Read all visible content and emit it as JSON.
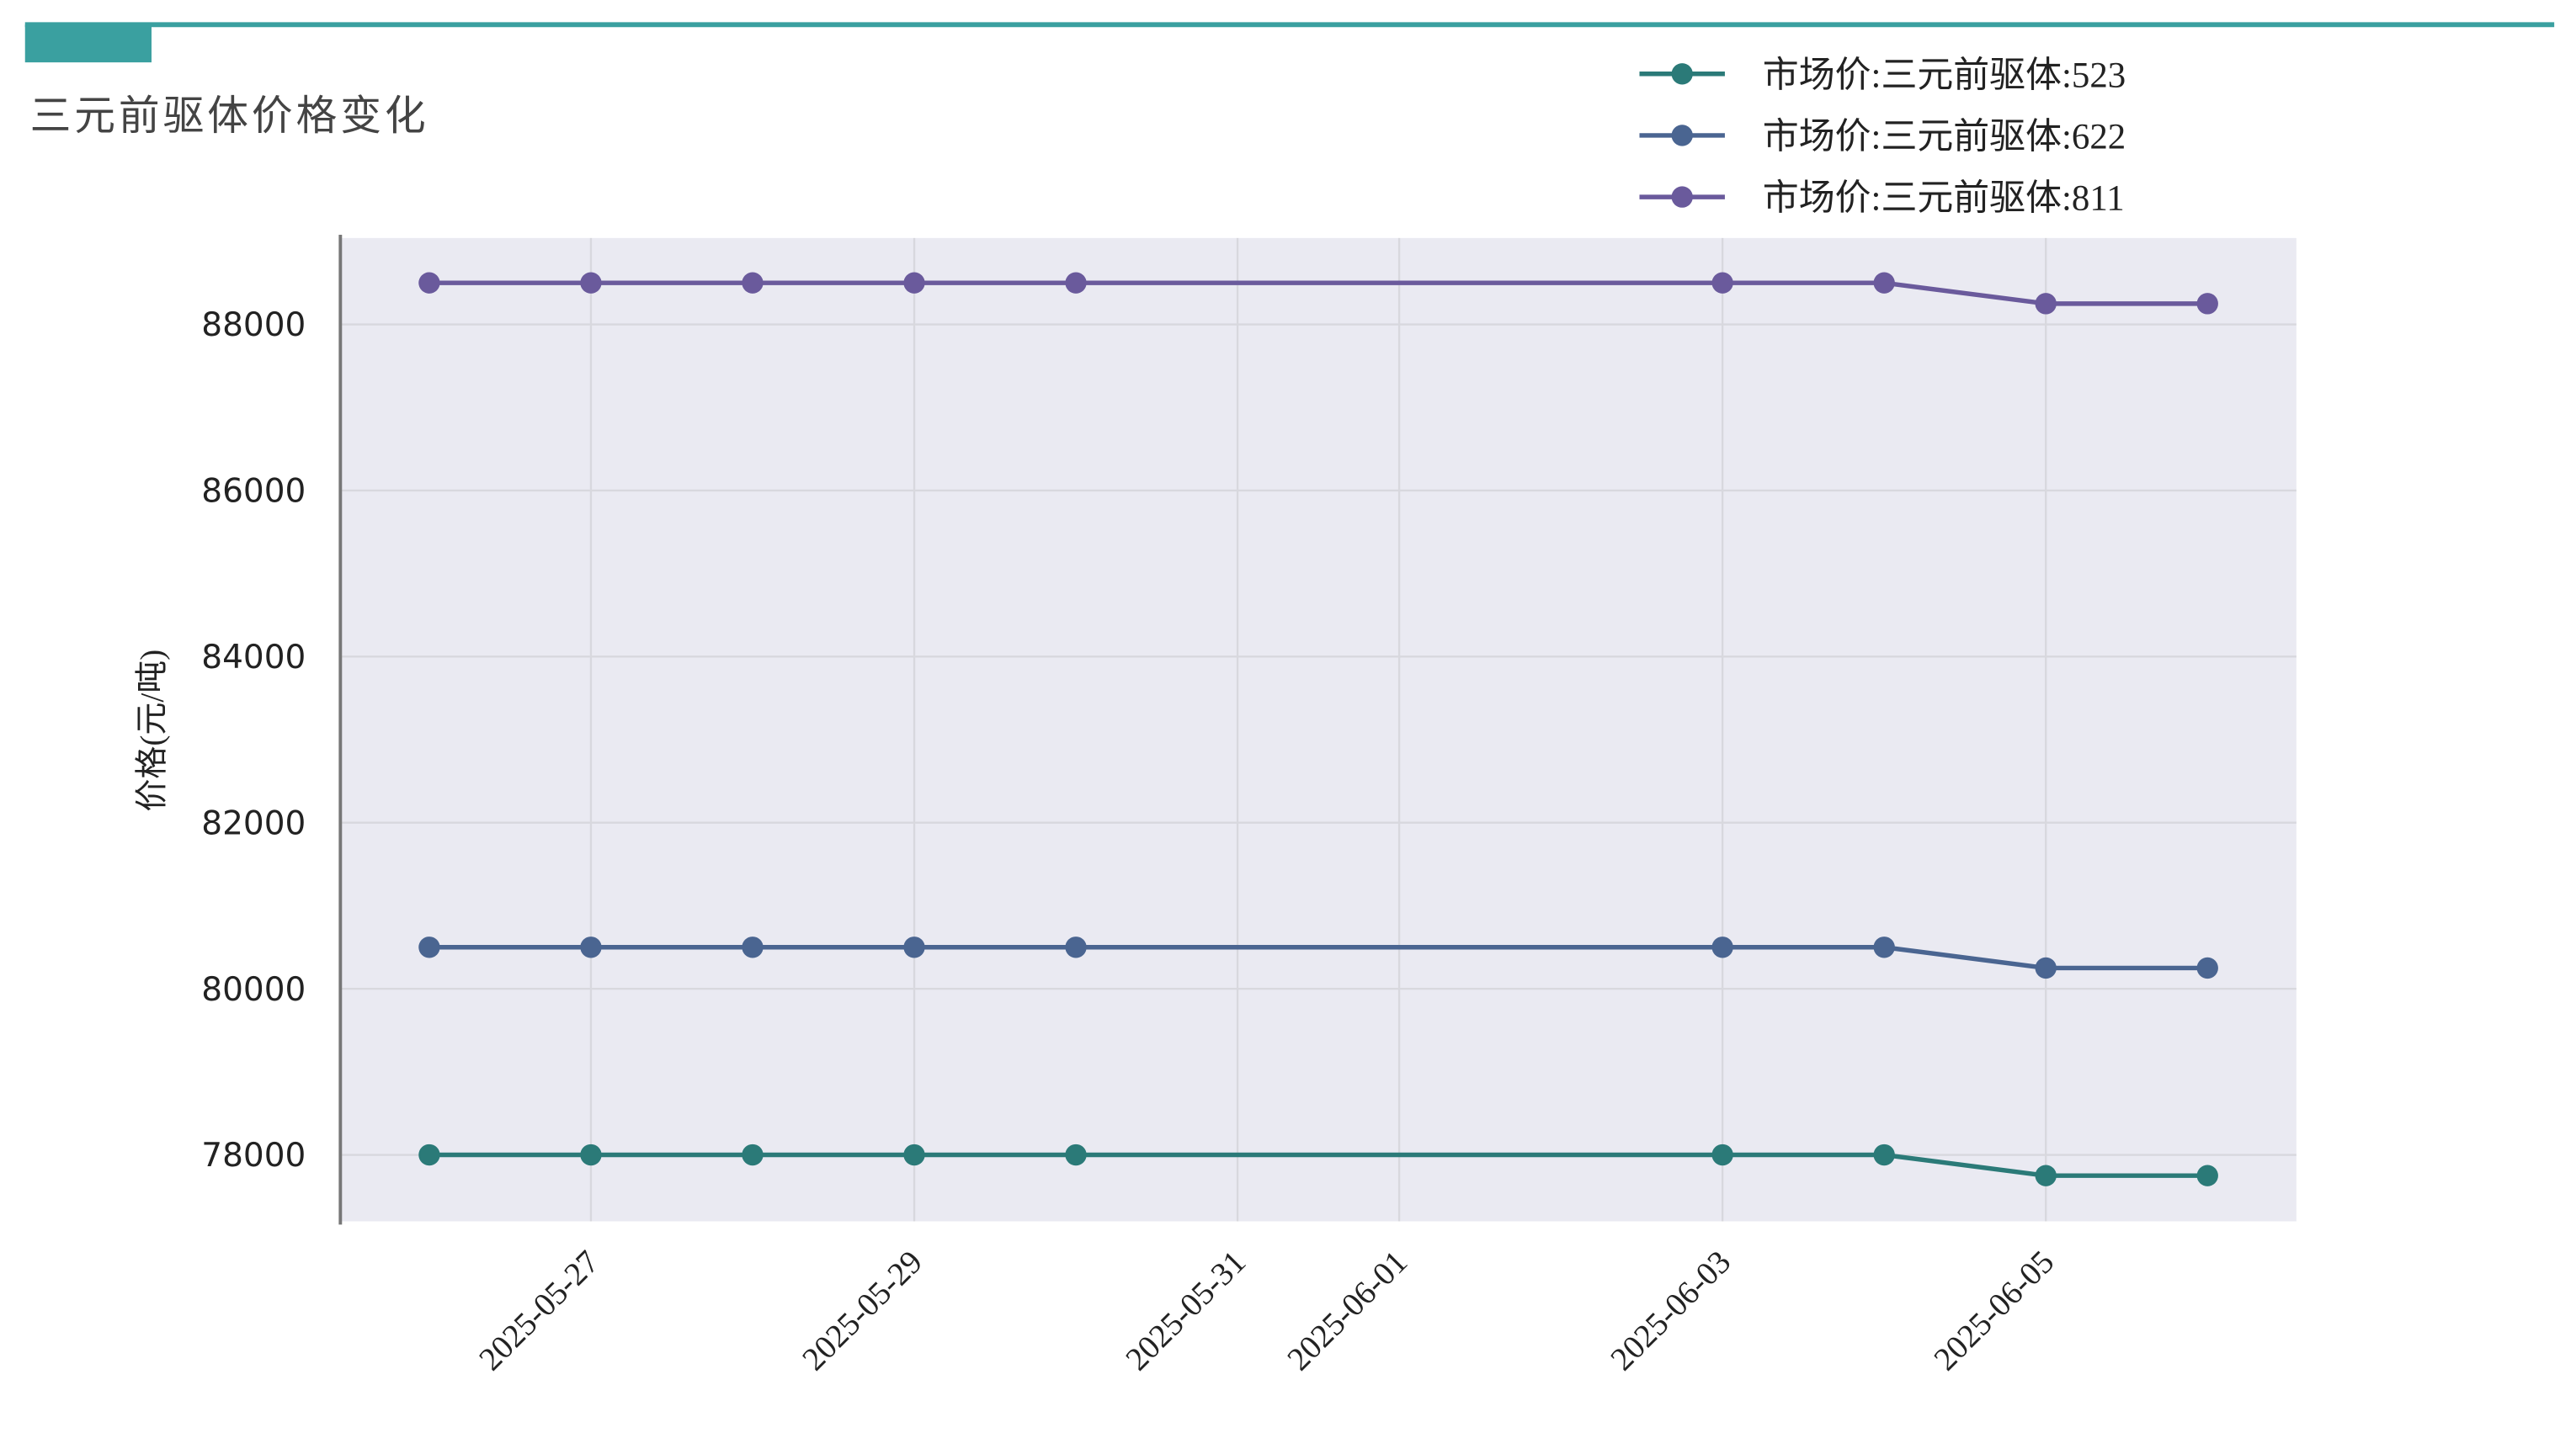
{
  "chart_data": {
    "type": "line",
    "title": "三元前驱体价格变化",
    "y_label": "价格(元/吨)",
    "x": [
      "2025-05-26",
      "2025-05-27",
      "2025-05-28",
      "2025-05-29",
      "2025-05-30",
      "2025-06-03",
      "2025-06-04",
      "2025-06-05",
      "2025-06-06"
    ],
    "series": [
      {
        "name": "市场价:三元前驱体:523",
        "color": "#2b7a78",
        "values": [
          78000,
          78000,
          78000,
          78000,
          78000,
          78000,
          78000,
          77750,
          77750
        ]
      },
      {
        "name": "市场价:三元前驱体:622",
        "color": "#4a6591",
        "values": [
          80500,
          80500,
          80500,
          80500,
          80500,
          80500,
          80500,
          80250,
          80250
        ]
      },
      {
        "name": "市场价:三元前驱体:811",
        "color": "#6a5a9c",
        "values": [
          88500,
          88500,
          88500,
          88500,
          88500,
          88500,
          88500,
          88250,
          88250
        ]
      }
    ],
    "xlim": [
      "2025-05-25T10:48",
      "2025-06-06T13:12"
    ],
    "xticks": [
      "2025-05-27",
      "2025-05-29",
      "2025-05-31",
      "2025-06-01",
      "2025-06-03",
      "2025-06-05"
    ],
    "ylim": [
      77200,
      89040
    ],
    "yticks": [
      78000,
      80000,
      82000,
      84000,
      86000,
      88000
    ],
    "grid": true,
    "legend": "upper right"
  }
}
